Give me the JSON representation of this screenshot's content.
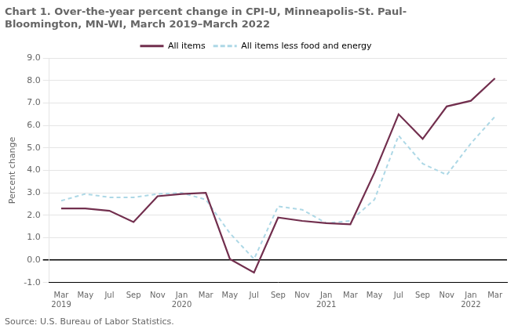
{
  "chart_data": {
    "type": "line",
    "title": "Chart 1. Over-the-year percent change in CPI-U, Minneapolis-St. Paul-\nBloomington, MN-WI, March 2019–March 2022",
    "y_label": "Percent change",
    "source": "Source: U.S. Bureau of Labor Statistics.",
    "categories": [
      "Mar\n2019",
      "May",
      "Jul",
      "Sep",
      "Nov",
      "Jan\n2020",
      "Mar",
      "May",
      "Jul",
      "Sep",
      "Nov",
      "Jan\n2021",
      "Mar",
      "May",
      "Jul",
      "Sep",
      "Nov",
      "Jan\n2022",
      "Mar"
    ],
    "series": [
      {
        "name": "All items",
        "color": "#722F4E",
        "line_style": "solid",
        "marker": "none",
        "values": [
          2.3,
          2.3,
          2.2,
          1.7,
          2.85,
          2.95,
          3.0,
          0.05,
          -0.55,
          1.9,
          1.75,
          1.65,
          1.6,
          3.9,
          6.5,
          5.4,
          6.85,
          7.1,
          8.1
        ]
      },
      {
        "name": "All items less food and energy",
        "color": "#ADD8E6",
        "line_style": "dashed",
        "marker": "none",
        "values": [
          2.65,
          2.95,
          2.8,
          2.8,
          2.95,
          3.0,
          2.7,
          1.2,
          0.05,
          2.4,
          2.25,
          1.65,
          1.75,
          2.7,
          5.55,
          4.3,
          3.8,
          5.2,
          6.4
        ]
      }
    ],
    "ylim": [
      -1.0,
      9.0
    ],
    "yticks": [
      {
        "value": -1.0,
        "label": "-1.0"
      },
      {
        "value": 0.0,
        "label": "0.0"
      },
      {
        "value": 1.0,
        "label": "1.0"
      },
      {
        "value": 2.0,
        "label": "2.0"
      },
      {
        "value": 3.0,
        "label": "3.0"
      },
      {
        "value": 4.0,
        "label": "4.0"
      },
      {
        "value": 5.0,
        "label": "5.0"
      },
      {
        "value": 6.0,
        "label": "6.0"
      },
      {
        "value": 7.0,
        "label": "7.0"
      },
      {
        "value": 8.0,
        "label": "8.0"
      },
      {
        "value": 9.0,
        "label": "9.0"
      }
    ],
    "grid": true,
    "legend": "top"
  }
}
